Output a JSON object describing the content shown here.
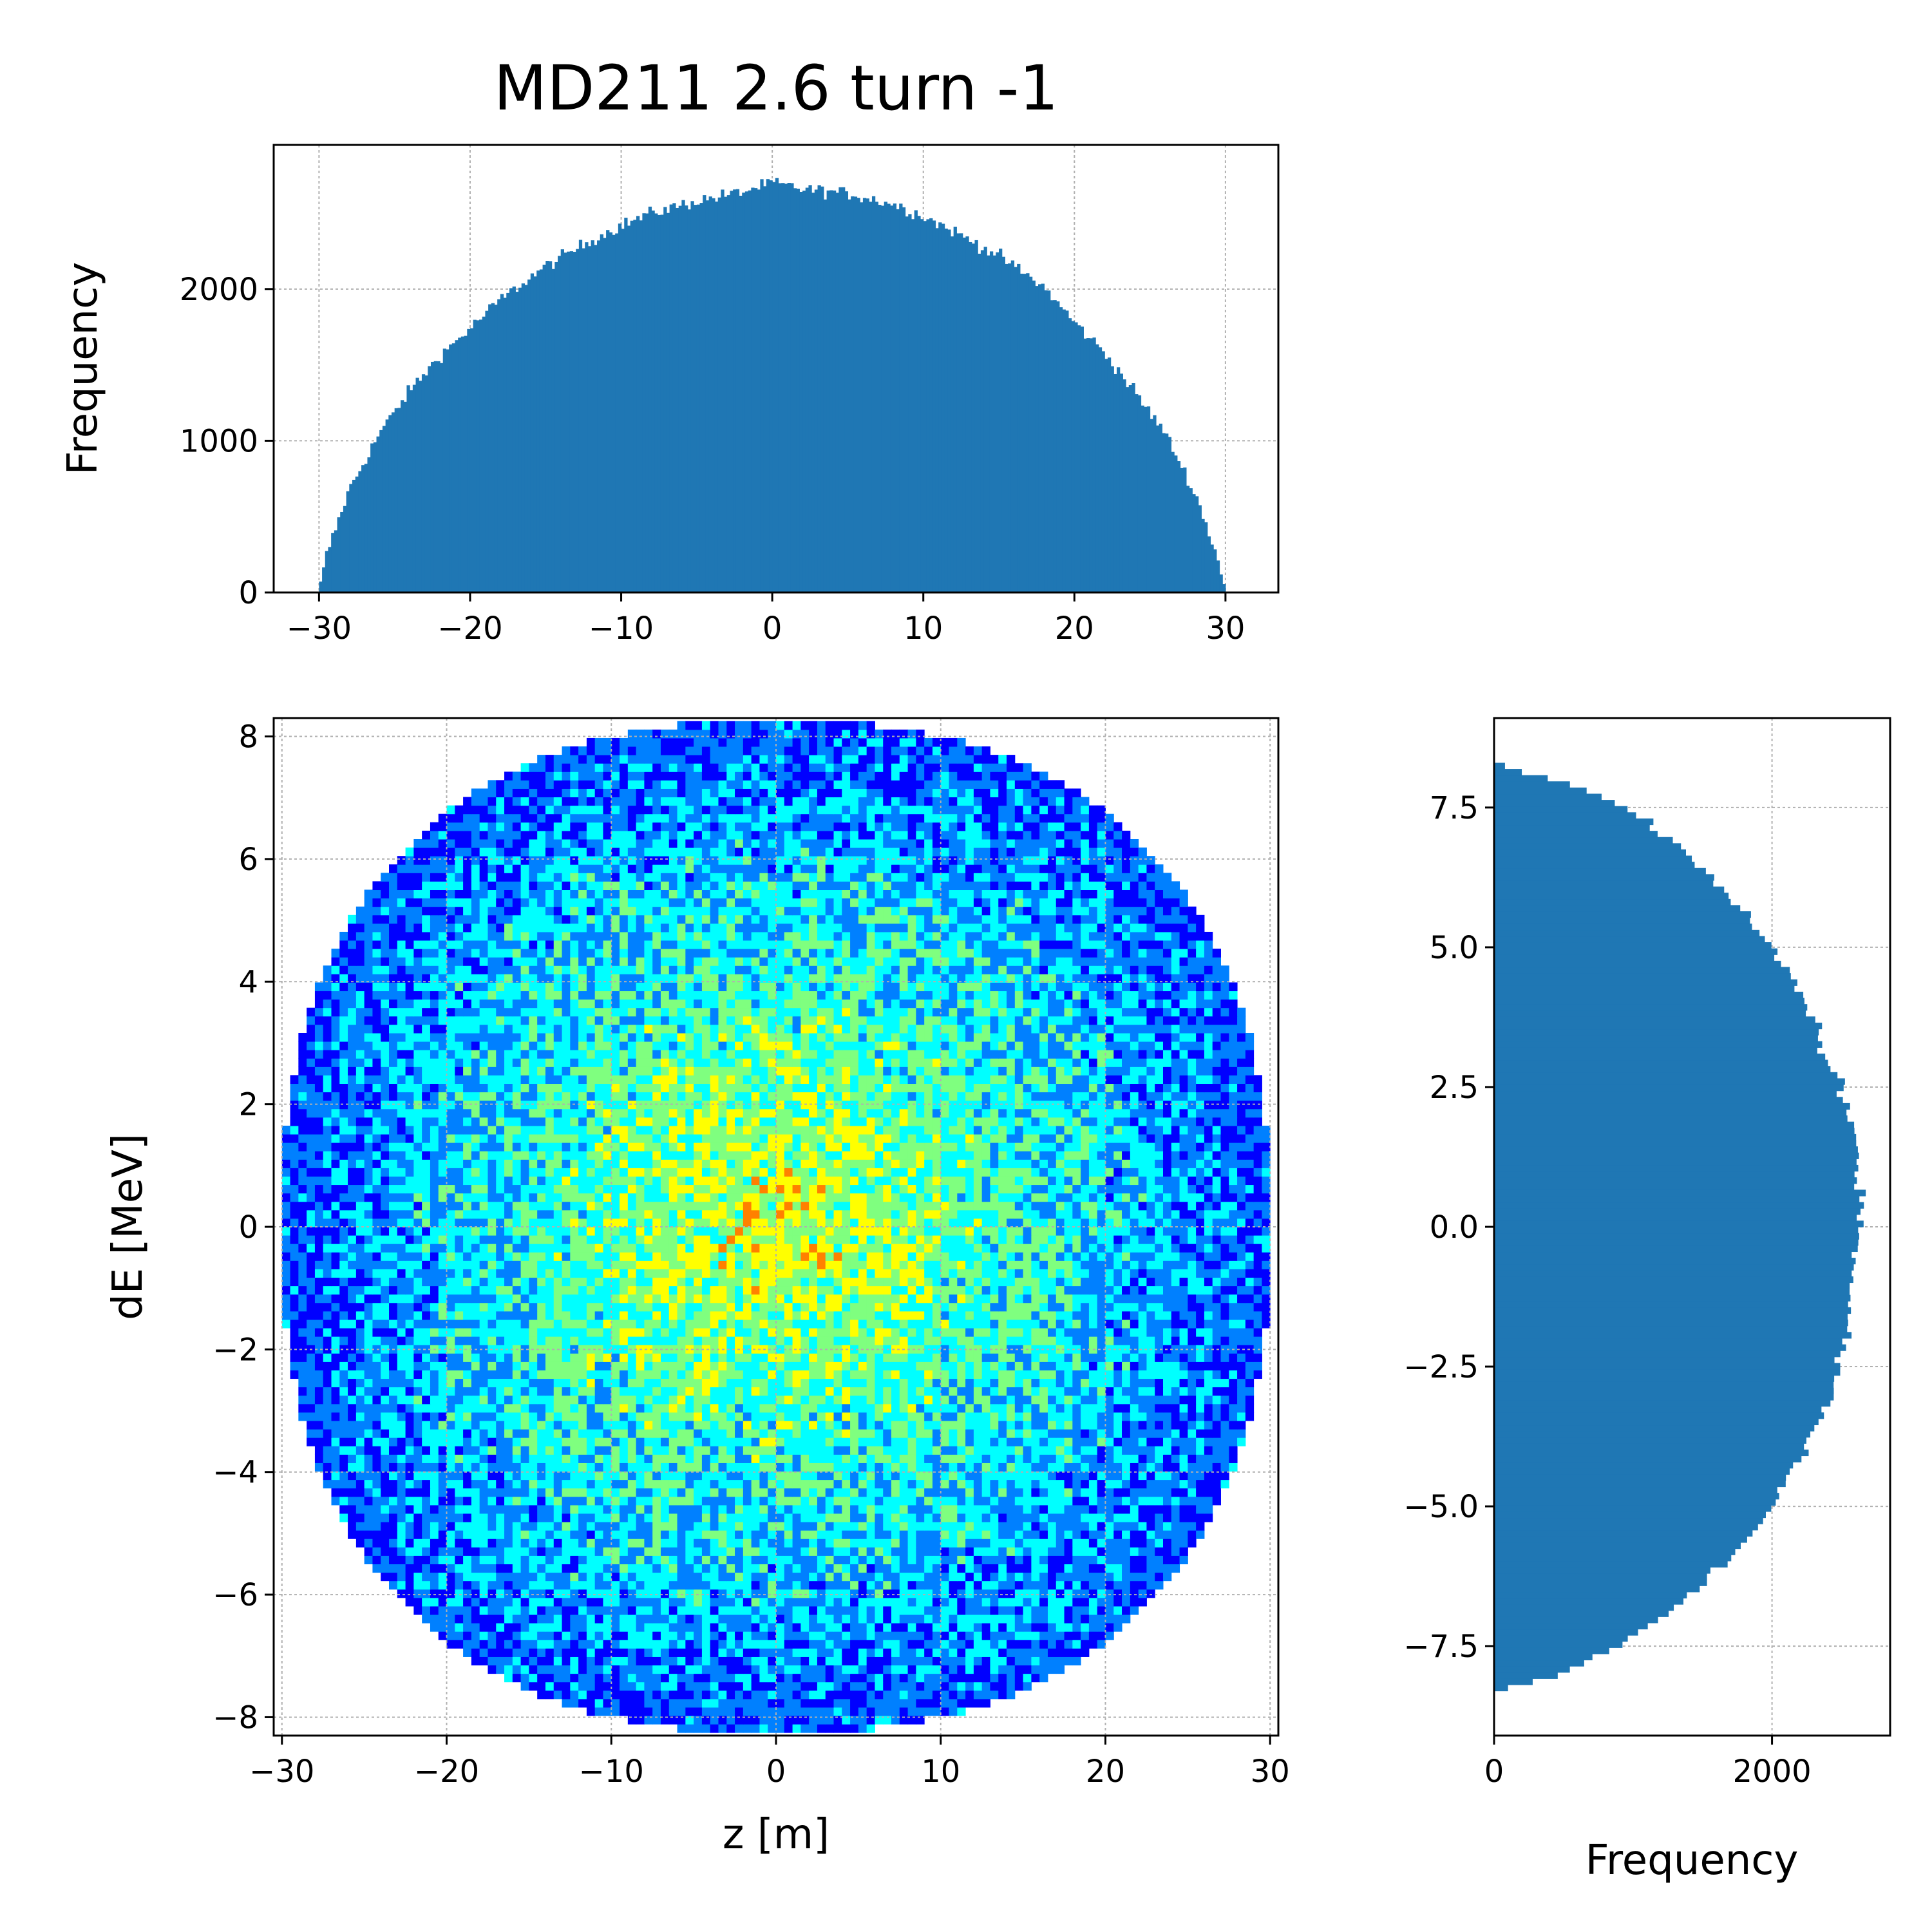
{
  "title": "MD211 2.6 turn -1",
  "colors": {
    "histogram": "#1f77b4",
    "axes": "#000000",
    "grid": "#b0b0b0",
    "colormap": [
      "#0000ff",
      "#0080ff",
      "#00ffff",
      "#7fff7f",
      "#ffff00",
      "#ff8000"
    ]
  },
  "chart_data": [
    {
      "id": "top-histogram",
      "type": "bar",
      "title": "MD211 2.6 turn -1",
      "xlabel": "",
      "ylabel": "Frequency",
      "xlim": [
        -33,
        33.5
      ],
      "ylim": [
        0,
        2950
      ],
      "xticks": [
        -30,
        -20,
        -10,
        0,
        10,
        20,
        30
      ],
      "xtick_labels": [
        "−30",
        "−20",
        "−10",
        "0",
        "10",
        "20",
        "30"
      ],
      "yticks": [
        0,
        1000,
        2000
      ],
      "ytick_labels": [
        "0",
        "1000",
        "2000"
      ],
      "grid": true,
      "x_range": [
        -30,
        30
      ],
      "profile_x": [
        -30,
        -29.5,
        -28,
        -26,
        -24,
        -22,
        -20,
        -18,
        -15,
        -12,
        -10,
        -8,
        -5,
        -2,
        0,
        2,
        5,
        8,
        10,
        12,
        15,
        18,
        20,
        22,
        24,
        26,
        28,
        29.5,
        30
      ],
      "profile_y": [
        0,
        250,
        680,
        1050,
        1330,
        1560,
        1740,
        1930,
        2150,
        2320,
        2420,
        2500,
        2580,
        2640,
        2700,
        2660,
        2630,
        2560,
        2480,
        2380,
        2220,
        2010,
        1780,
        1580,
        1320,
        1050,
        650,
        220,
        0
      ]
    },
    {
      "id": "phase-space",
      "type": "heatmap",
      "xlabel": "z [m]",
      "ylabel": "dE [MeV]",
      "xlim": [
        -30.5,
        30.5
      ],
      "ylim": [
        -8.3,
        8.3
      ],
      "xticks": [
        -30,
        -20,
        -10,
        0,
        10,
        20,
        30
      ],
      "xtick_labels": [
        "−30",
        "−20",
        "−10",
        "0",
        "10",
        "20",
        "30"
      ],
      "yticks": [
        -8,
        -6,
        -4,
        -2,
        0,
        2,
        4,
        6,
        8
      ],
      "ytick_labels": [
        "−8",
        "−6",
        "−4",
        "−2",
        "0",
        "2",
        "4",
        "6",
        "8"
      ],
      "grid": true,
      "z_half_width": 30,
      "dE_half_width": 8.25
    },
    {
      "id": "side-histogram",
      "type": "bar",
      "orientation": "horizontal",
      "xlabel": "Frequency",
      "ylabel": "",
      "xlim": [
        0,
        2850
      ],
      "ylim": [
        -9.1,
        9.1
      ],
      "xticks": [
        0,
        2000
      ],
      "xtick_labels": [
        "0",
        "2000"
      ],
      "yticks": [
        -7.5,
        -5,
        -2.5,
        0,
        2.5,
        5,
        7.5
      ],
      "ytick_labels": [
        "−7.5",
        "−5.0",
        "−2.5",
        "0.0",
        "2.5",
        "5.0",
        "7.5"
      ],
      "grid": true,
      "y_range": [
        -8.3,
        8.3
      ],
      "profile_y": [
        -8.3,
        -8.0,
        -7.5,
        -7.0,
        -6.5,
        -6.0,
        -5.5,
        -5.0,
        -4.5,
        -4.0,
        -3.5,
        -3.0,
        -2.5,
        -2.0,
        -1.0,
        0,
        1.0,
        2.0,
        2.5,
        3.0,
        3.5,
        4.0,
        4.5,
        5.0,
        5.5,
        6.0,
        6.5,
        7.0,
        7.5,
        8.0,
        8.3
      ],
      "profile_values": [
        0,
        500,
        900,
        1180,
        1450,
        1650,
        1850,
        2000,
        2120,
        2240,
        2330,
        2420,
        2480,
        2530,
        2590,
        2640,
        2620,
        2560,
        2500,
        2400,
        2320,
        2240,
        2130,
        2000,
        1850,
        1680,
        1480,
        1220,
        950,
        420,
        0
      ]
    }
  ]
}
